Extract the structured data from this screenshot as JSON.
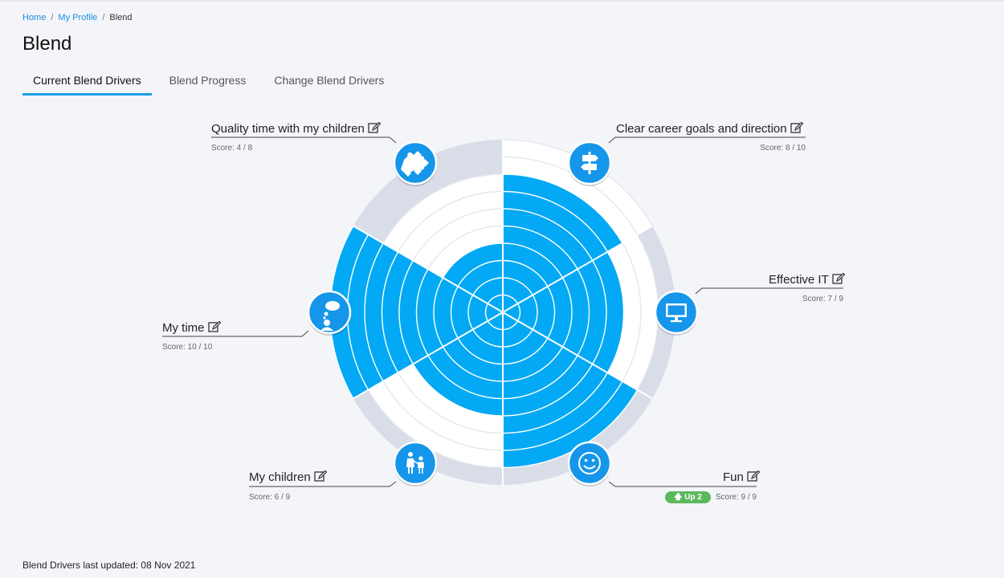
{
  "breadcrumb": {
    "home": "Home",
    "profile": "My Profile",
    "current": "Blend"
  },
  "page_title": "Blend",
  "tabs": [
    {
      "label": "Current Blend Drivers",
      "active": true
    },
    {
      "label": "Blend Progress",
      "active": false
    },
    {
      "label": "Change Blend Drivers",
      "active": false
    }
  ],
  "drivers": [
    {
      "name": "Clear career goals and direction",
      "score_text": "Score: 8 / 10",
      "score": 8,
      "max": 10,
      "icon": "signpost-icon"
    },
    {
      "name": "Effective IT",
      "score_text": "Score: 7 / 9",
      "score": 7,
      "max": 9,
      "icon": "monitor-icon"
    },
    {
      "name": "Fun",
      "score_text": "Score: 9 / 9",
      "score": 9,
      "max": 9,
      "icon": "smiley-icon",
      "badge": "Up 2"
    },
    {
      "name": "My children",
      "score_text": "Score: 6 / 9",
      "score": 6,
      "max": 9,
      "icon": "children-icon"
    },
    {
      "name": "My time",
      "score_text": "Score: 10 / 10",
      "score": 10,
      "max": 10,
      "icon": "thought-bubble-icon"
    },
    {
      "name": "Quality time with my children",
      "score_text": "Score: 4 / 8",
      "score": 4,
      "max": 8,
      "icon": "puzzle-icon"
    }
  ],
  "footer": "Blend Drivers last updated: 08 Nov 2021",
  "colors": {
    "fill": "#03a9f4",
    "outer": "#d9dde8",
    "grid": "#ffffff",
    "accent": "#1aa1e6",
    "badge": "#5cb85c"
  }
}
